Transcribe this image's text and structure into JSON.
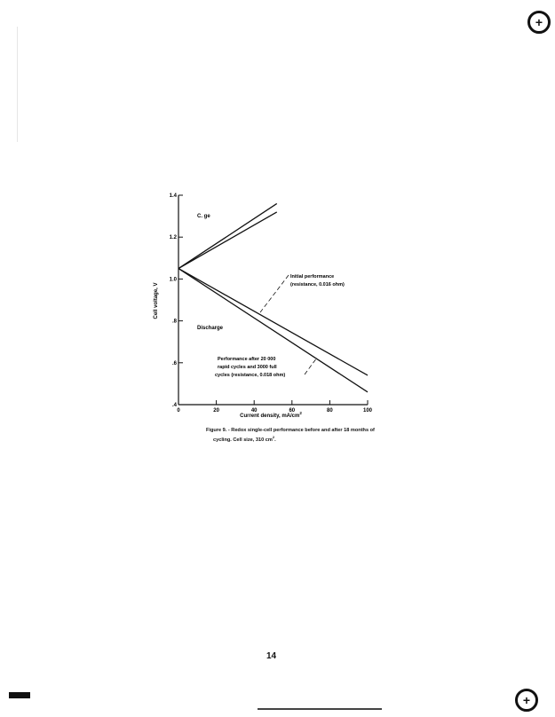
{
  "chart_data": {
    "type": "line",
    "xlabel": "Current density, mA/cm",
    "xlabel_sup": "2",
    "ylabel": "Cell voltage, V",
    "xlim": [
      0,
      100
    ],
    "ylim": [
      0.4,
      1.4
    ],
    "xticks": [
      "0",
      "20",
      "40",
      "60",
      "80",
      "100"
    ],
    "yticks": [
      ".4",
      ".6",
      ".8",
      "1.0",
      "1.2",
      "1.4"
    ],
    "grid": false,
    "series": [
      {
        "group": "charge-initial",
        "x": [
          0,
          52
        ],
        "y": [
          1.05,
          1.36
        ]
      },
      {
        "group": "charge-after-cycling",
        "x": [
          0,
          52
        ],
        "y": [
          1.05,
          1.32
        ]
      },
      {
        "group": "discharge-initial",
        "x": [
          0,
          100
        ],
        "y": [
          1.05,
          0.54
        ]
      },
      {
        "group": "discharge-after-cycling",
        "x": [
          0,
          100
        ],
        "y": [
          1.05,
          0.46
        ]
      }
    ],
    "annotations": {
      "charge": "C.  ge",
      "discharge": "Discharge",
      "initial_line1": "Initial performance",
      "initial_line2": "(resistance, 0.016 ohm)",
      "after_line1": "Performance after 20 000",
      "after_line2": "rapid cycles and 3000 full",
      "after_line3": "cycles (resistance, 0.018 ohm)"
    }
  },
  "caption": {
    "line1": "Figure 9. - Redox single-cell performance before and after 18 months of",
    "line2": "cycling.  Cell size, 310 cm",
    "line2_sup": "2",
    "line2_end": "."
  },
  "page_number": "14"
}
